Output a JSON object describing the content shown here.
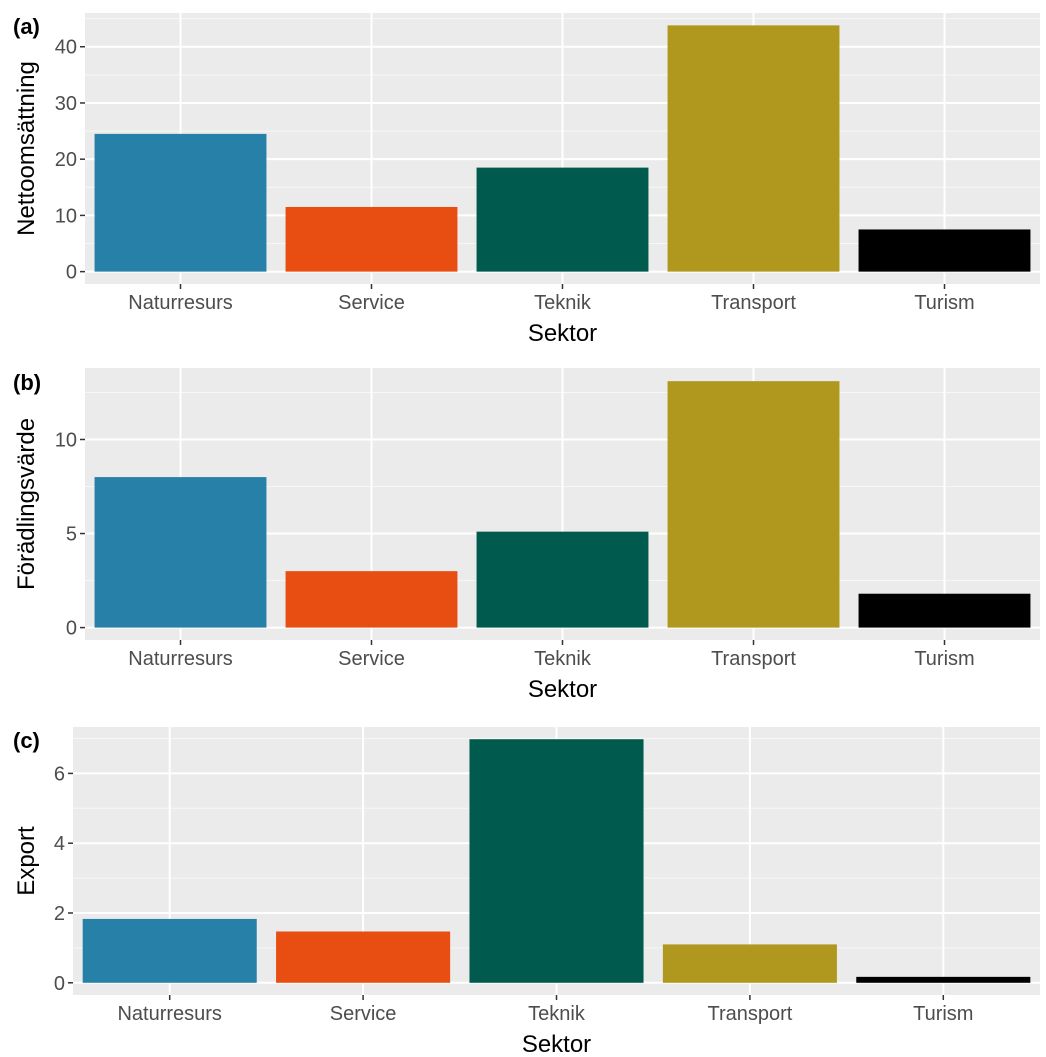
{
  "chart_data": [
    {
      "type": "bar",
      "panel_label": "(a)",
      "categories": [
        "Naturresurs",
        "Service",
        "Teknik",
        "Transport",
        "Turism"
      ],
      "values": [
        24.5,
        11.5,
        18.5,
        43.8,
        7.5
      ],
      "colors": [
        "#2680a7",
        "#e84e12",
        "#005a4e",
        "#b0981e",
        "#000000"
      ],
      "xlabel": "Sektor",
      "ylabel": "Nettoomsättning",
      "yticks": [
        0,
        10,
        20,
        30,
        40
      ],
      "ylim": [
        -2.2,
        46
      ],
      "grid": true
    },
    {
      "type": "bar",
      "panel_label": "(b)",
      "categories": [
        "Naturresurs",
        "Service",
        "Teknik",
        "Transport",
        "Turism"
      ],
      "values": [
        8.0,
        3.0,
        5.1,
        13.1,
        1.8
      ],
      "colors": [
        "#2680a7",
        "#e84e12",
        "#005a4e",
        "#b0981e",
        "#000000"
      ],
      "xlabel": "Sektor",
      "ylabel": "Förädlingsvärde",
      "yticks": [
        0,
        5,
        10
      ],
      "ylim": [
        -0.66,
        13.8
      ],
      "grid": true
    },
    {
      "type": "bar",
      "panel_label": "(c)",
      "categories": [
        "Naturresurs",
        "Service",
        "Teknik",
        "Transport",
        "Turism"
      ],
      "values": [
        1.83,
        1.47,
        6.98,
        1.1,
        0.17
      ],
      "colors": [
        "#2680a7",
        "#e84e12",
        "#005a4e",
        "#b0981e",
        "#000000"
      ],
      "xlabel": "Sektor",
      "ylabel": "Export",
      "yticks": [
        0,
        2,
        4,
        6
      ],
      "ylim": [
        -0.35,
        7.33
      ],
      "grid": true
    }
  ]
}
